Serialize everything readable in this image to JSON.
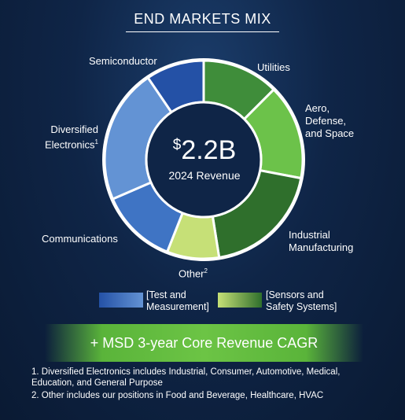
{
  "title": "END MARKETS MIX",
  "center": {
    "currency": "$",
    "amount": "2.2B",
    "caption": "2024 Revenue"
  },
  "chart_data": {
    "type": "pie",
    "title": "END MARKETS MIX",
    "slices": [
      {
        "label": "Utilities",
        "value": 12.5,
        "group": "Sensors and Safety Systems",
        "color": "#3f8d3a"
      },
      {
        "label": "Aero, Defense, and Space",
        "value": 15.5,
        "group": "Sensors and Safety Systems",
        "color": "#6cc24a"
      },
      {
        "label": "Industrial Manufacturing",
        "value": 19.5,
        "group": "Sensors and Safety Systems",
        "color": "#2f6f2c"
      },
      {
        "label": "Other",
        "sup": "2",
        "value": 8.5,
        "group": "Sensors and Safety Systems",
        "color": "#c6e077"
      },
      {
        "label": "Communications",
        "value": 12.5,
        "group": "Test and Measurement",
        "color": "#3f74c4"
      },
      {
        "label": "Diversified Electronics",
        "sup": "1",
        "value": 22.0,
        "group": "Test and Measurement",
        "color": "#6393d4"
      },
      {
        "label": "Semiconductor",
        "value": 9.5,
        "group": "Test and Measurement",
        "color": "#2451a6"
      }
    ]
  },
  "labels": {
    "semiconductor": "Semiconductor",
    "utilities": "Utilities",
    "aero": [
      "Aero,",
      "Defense,",
      "and Space"
    ],
    "diversified": [
      "Diversified",
      "Electronics"
    ],
    "diversified_sup": "1",
    "industrial": [
      "Industrial",
      "Manufacturing"
    ],
    "communications": "Communications",
    "other": "Other",
    "other_sup": "2"
  },
  "legend": [
    {
      "lines": [
        "[Test and",
        "Measurement]"
      ],
      "colors": [
        "#2451a6",
        "#6393d4"
      ]
    },
    {
      "lines": [
        "[Sensors and",
        "Safety Systems]"
      ],
      "colors": [
        "#c6e077",
        "#2f6f2c"
      ]
    }
  ],
  "banner": "+ MSD 3-year Core Revenue CAGR",
  "footnotes": [
    "1. Diversified Electronics includes Industrial, Consumer, Automotive, Medical, Education, and General Purpose",
    "2. Other includes our positions in Food and Beverage, Healthcare, HVAC"
  ]
}
